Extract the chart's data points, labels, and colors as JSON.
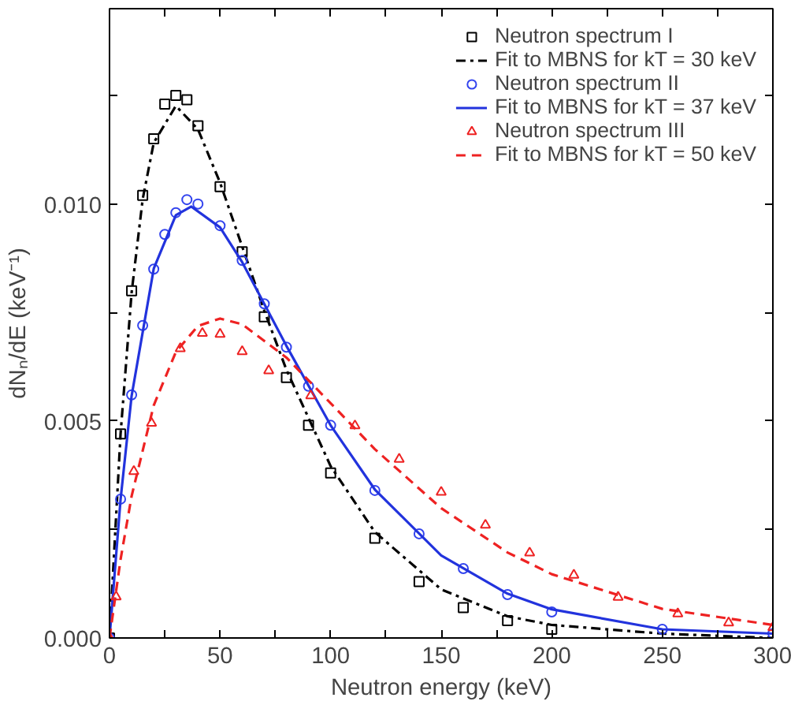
{
  "chart_data": {
    "type": "scatter",
    "xlabel": "Neutron energy (keV)",
    "ylabel": "dNₙ/dE (keV⁻¹)",
    "xlim": [
      0,
      300
    ],
    "ylim": [
      0,
      0.0145
    ],
    "xticks": [
      0,
      {
        "value": 25,
        "label": null
      },
      50,
      {
        "value": 75,
        "label": null
      },
      100,
      {
        "value": 125,
        "label": null
      },
      150,
      {
        "value": 175,
        "label": null
      },
      200,
      {
        "value": 225,
        "label": null
      },
      250,
      {
        "value": 275,
        "label": null
      },
      300
    ],
    "yticks": [
      {
        "value": 0,
        "label": "0.000"
      },
      {
        "value": 0.0025,
        "label": null
      },
      {
        "value": 0.005,
        "label": "0.005"
      },
      {
        "value": 0.0075,
        "label": null
      },
      {
        "value": 0.01,
        "label": "0.010"
      },
      {
        "value": 0.0125,
        "label": null
      }
    ],
    "grid": false,
    "legend": "top right",
    "series": [
      {
        "name": "Neutron spectrum I",
        "marker": "square",
        "color": "#000000",
        "x": [
          0,
          5,
          10,
          15,
          20,
          25,
          30,
          35,
          40,
          50,
          60,
          70,
          80,
          90,
          100,
          120,
          140,
          160,
          180,
          200
        ],
        "values": [
          0,
          0.0047,
          0.008,
          0.0102,
          0.0115,
          0.0123,
          0.0125,
          0.0124,
          0.0118,
          0.0104,
          0.0089,
          0.0074,
          0.006,
          0.0049,
          0.0038,
          0.0023,
          0.0013,
          0.0007,
          0.0004,
          0.0002
        ]
      },
      {
        "name": "Fit to MBNS for kT = 30 keV",
        "type": "line",
        "line_style": "dashdot",
        "color": "#000000",
        "x": [
          0,
          5,
          10,
          15,
          20,
          30,
          40,
          50,
          60,
          70,
          80,
          100,
          120,
          150,
          180,
          200,
          250,
          300
        ],
        "values": [
          0,
          0.0047,
          0.00796,
          0.01011,
          0.01141,
          0.01226,
          0.01172,
          0.01049,
          0.00902,
          0.00754,
          0.00618,
          0.00396,
          0.00244,
          0.00112,
          0.0005,
          0.0003,
          0.0001,
          0
        ]
      },
      {
        "name": "Neutron spectrum II",
        "marker": "circle",
        "color": "#3344ee",
        "x": [
          0,
          5,
          10,
          15,
          20,
          25,
          30,
          35,
          40,
          50,
          60,
          70,
          80,
          90,
          100,
          120,
          140,
          160,
          180,
          200,
          250,
          300
        ],
        "values": [
          0,
          0.0032,
          0.0056,
          0.0072,
          0.0085,
          0.0093,
          0.0098,
          0.0101,
          0.01,
          0.0095,
          0.0087,
          0.0077,
          0.0067,
          0.0058,
          0.0049,
          0.0034,
          0.0024,
          0.0016,
          0.001,
          0.0006,
          0.0002,
          0.0001
        ]
      },
      {
        "name": "Fit to MBNS for kT = 37 keV",
        "type": "line",
        "line_style": "solid",
        "color": "#2233dd",
        "x": [
          0,
          5,
          10,
          20,
          30,
          37,
          50,
          60,
          80,
          100,
          120,
          150,
          180,
          200,
          250,
          300
        ],
        "values": [
          0,
          0.00319,
          0.00558,
          0.00851,
          0.00974,
          0.00994,
          0.00946,
          0.00866,
          0.00673,
          0.0049,
          0.00342,
          0.0019,
          0.00102,
          0.00066,
          0.0002,
          0.0001
        ]
      },
      {
        "name": "Neutron spectrum III",
        "marker": "triangle",
        "color": "#ee2222",
        "x": [
          0,
          3,
          11,
          19,
          32,
          42,
          50,
          60,
          72,
          91,
          111,
          131,
          150,
          170,
          190,
          210,
          230,
          257,
          280,
          300
        ],
        "values": [
          0,
          0.00095,
          0.00384,
          0.00495,
          0.00667,
          0.00702,
          0.007,
          0.0066,
          0.00616,
          0.00558,
          0.00489,
          0.00412,
          0.00336,
          0.0026,
          0.00196,
          0.00145,
          0.00094,
          0.00056,
          0.00035,
          0.00024
        ]
      },
      {
        "name": "Fit to MBNS for kT = 50 keV",
        "type": "line",
        "line_style": "dashed",
        "color": "#ee2222",
        "x": [
          0,
          5,
          10,
          20,
          30,
          40,
          50,
          60,
          80,
          100,
          120,
          150,
          180,
          200,
          250,
          300
        ],
        "values": [
          0,
          0.00181,
          0.00327,
          0.00536,
          0.00659,
          0.00719,
          0.00736,
          0.00723,
          0.00646,
          0.00541,
          0.00435,
          0.00299,
          0.00197,
          0.00147,
          0.00067,
          0.0003
        ]
      }
    ]
  }
}
